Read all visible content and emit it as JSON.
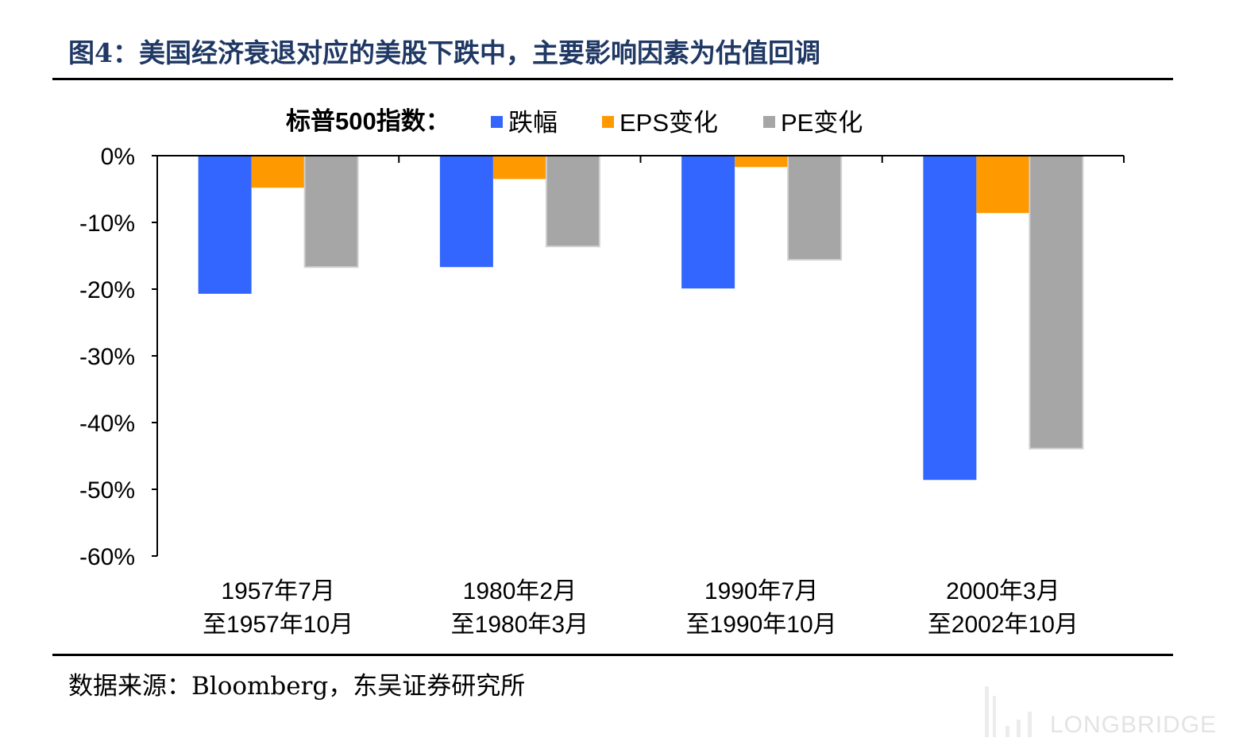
{
  "figure": {
    "title": "图4：美国经济衰退对应的美股下跌中，主要影响因素为估值回调",
    "source": "数据来源：Bloomberg，东吴证券研究所",
    "watermark": "LONGBRIDGE"
  },
  "chart_data": {
    "type": "bar",
    "legend_title": "标普500指数：",
    "legend_position": "top",
    "categories": [
      [
        "1957年7月",
        "至1957年10月"
      ],
      [
        "1980年2月",
        "至1980年3月"
      ],
      [
        "1990年7月",
        "至1990年10月"
      ],
      [
        "2000年3月",
        "至2002年10月"
      ]
    ],
    "series": [
      {
        "name": "跌幅",
        "color": "#3366ff",
        "values": [
          -20.7,
          -16.7,
          -19.9,
          -48.6
        ]
      },
      {
        "name": "EPS变化",
        "color": "#ff9900",
        "values": [
          -4.8,
          -3.5,
          -1.7,
          -8.6
        ]
      },
      {
        "name": "PE变化",
        "color": "#a6a6a6",
        "values": [
          -16.7,
          -13.6,
          -15.6,
          -43.9
        ]
      }
    ],
    "ylim": [
      -60,
      0
    ],
    "y_ticks": [
      0,
      -10,
      -20,
      -30,
      -40,
      -50,
      -60
    ],
    "y_tick_labels": [
      "0%",
      "-10%",
      "-20%",
      "-30%",
      "-40%",
      "-50%",
      "-60%"
    ],
    "grid": false
  }
}
